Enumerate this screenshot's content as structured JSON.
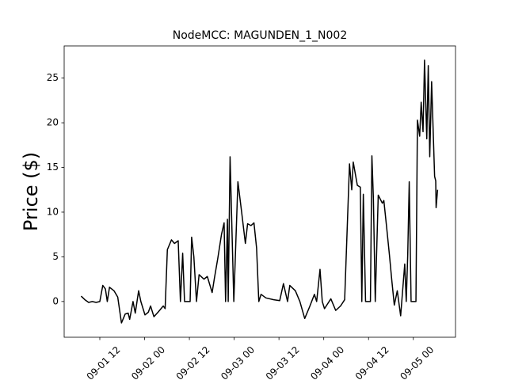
{
  "chart_data": {
    "type": "line",
    "title": "NodeMCC: MAGUNDEN_1_N002",
    "y_label": "Price ($)",
    "x": [
      "09-01 07:00",
      "09-01 08:00",
      "09-01 09:00",
      "09-01 10:00",
      "09-01 11:00",
      "09-01 12:00",
      "09-01 12:48",
      "09-01 13:30",
      "09-01 14:00",
      "09-01 14:36",
      "09-01 15:48",
      "09-01 16:48",
      "09-01 17:48",
      "09-01 18:48",
      "09-01 19:36",
      "09-01 20:00",
      "09-01 20:54",
      "09-01 21:30",
      "09-01 22:24",
      "09-01 23:00",
      "09-02 00:06",
      "09-02 01:00",
      "09-02 01:36",
      "09-02 02:30",
      "09-02 03:36",
      "09-02 05:00",
      "09-02 05:30",
      "09-02 06:06",
      "09-02 07:12",
      "09-02 08:00",
      "09-02 09:00",
      "09-02 09:36",
      "09-02 10:12",
      "09-02 10:42",
      "09-02 12:12",
      "09-02 12:36",
      "09-02 13:12",
      "09-02 13:54",
      "09-02 14:36",
      "09-02 15:54",
      "09-02 16:48",
      "09-02 18:06",
      "09-02 18:42",
      "09-02 19:36",
      "09-02 20:36",
      "09-02 21:18",
      "09-02 21:42",
      "09-02 22:12",
      "09-02 22:24",
      "09-02 22:54",
      "09-02 23:54",
      "09-03 01:00",
      "09-03 02:00",
      "09-03 03:00",
      "09-03 03:36",
      "09-03 04:30",
      "09-03 05:18",
      "09-03 06:00",
      "09-03 06:36",
      "09-03 07:12",
      "09-03 08:30",
      "09-03 10:36",
      "09-03 12:12",
      "09-03 13:12",
      "09-03 14:18",
      "09-03 14:54",
      "09-03 16:24",
      "09-03 17:36",
      "09-03 18:54",
      "09-03 20:12",
      "09-03 21:30",
      "09-03 22:06",
      "09-03 23:00",
      "09-03 23:36",
      "09-04 00:12",
      "09-04 01:54",
      "09-04 03:12",
      "09-04 04:30",
      "09-04 05:36",
      "09-04 06:54",
      "09-04 07:30",
      "09-04 07:54",
      "09-04 09:00",
      "09-04 09:48",
      "09-04 10:12",
      "09-04 10:36",
      "09-04 11:12",
      "09-04 12:30",
      "09-04 12:54",
      "09-04 13:18",
      "09-04 13:48",
      "09-04 14:36",
      "09-04 15:42",
      "09-04 16:06",
      "09-04 16:48",
      "09-04 17:36",
      "09-04 18:12",
      "09-04 18:54",
      "09-04 19:42",
      "09-04 20:36",
      "09-04 21:42",
      "09-04 22:06",
      "09-04 22:30",
      "09-04 22:54",
      "09-04 23:24",
      "09-05 00:42",
      "09-05 01:06",
      "09-05 01:42",
      "09-05 02:06",
      "09-05 02:36",
      "09-05 03:00",
      "09-05 03:36",
      "09-05 04:00",
      "09-05 04:24",
      "09-05 04:54",
      "09-05 05:42",
      "09-05 06:00",
      "09-05 06:06",
      "09-05 06:30"
    ],
    "series": [
      {
        "name": "Price",
        "color": "#000000",
        "values": [
          0.6,
          0.2,
          -0.1,
          0.0,
          -0.1,
          0.0,
          1.8,
          1.4,
          0.0,
          1.6,
          1.2,
          0.5,
          -2.4,
          -1.4,
          -1.3,
          -2.0,
          0.0,
          -1.3,
          1.2,
          0.0,
          -1.5,
          -1.2,
          -0.5,
          -1.7,
          -1.2,
          -0.5,
          -0.8,
          5.8,
          6.9,
          6.5,
          6.8,
          0.0,
          5.4,
          0.0,
          0.0,
          7.2,
          5.0,
          0.0,
          3.0,
          2.5,
          2.8,
          1.0,
          2.6,
          4.8,
          7.5,
          8.8,
          0.0,
          9.2,
          0.0,
          16.2,
          0.0,
          13.4,
          10.0,
          6.5,
          8.7,
          8.5,
          8.8,
          6.0,
          0.0,
          0.8,
          0.4,
          0.2,
          0.1,
          2.0,
          0.0,
          1.8,
          1.2,
          0.0,
          -1.9,
          -0.6,
          0.8,
          0.0,
          3.6,
          0.0,
          -0.8,
          0.3,
          -1.0,
          -0.5,
          0.2,
          15.4,
          12.5,
          15.6,
          13.0,
          12.8,
          0.0,
          12.0,
          0.0,
          0.0,
          16.3,
          11.5,
          0.0,
          11.9,
          11.0,
          11.3,
          8.5,
          5.2,
          2.5,
          -0.4,
          1.2,
          -1.6,
          4.2,
          0.0,
          5.2,
          13.4,
          0.0,
          0.0,
          20.3,
          18.5,
          22.3,
          19.0,
          27.0,
          18.2,
          26.4,
          16.2,
          24.6,
          14.0,
          13.5,
          10.5,
          12.5
        ]
      }
    ],
    "xlim": [
      "09-01 02:27",
      "09-05 11:18"
    ],
    "xticks": [
      {
        "value": "09-01 12:00",
        "label": "09-01 12"
      },
      {
        "value": "09-02 00:00",
        "label": "09-02 00"
      },
      {
        "value": "09-02 12:00",
        "label": "09-02 12"
      },
      {
        "value": "09-03 00:00",
        "label": "09-03 00"
      },
      {
        "value": "09-03 12:00",
        "label": "09-03 12"
      },
      {
        "value": "09-04 00:00",
        "label": "09-04 00"
      },
      {
        "value": "09-04 12:00",
        "label": "09-04 12"
      },
      {
        "value": "09-05 00:00",
        "label": "09-05 00"
      }
    ],
    "ylim": [
      -4.0,
      28.6
    ],
    "yticks": [
      0,
      5,
      10,
      15,
      20,
      25
    ],
    "grid": false
  }
}
